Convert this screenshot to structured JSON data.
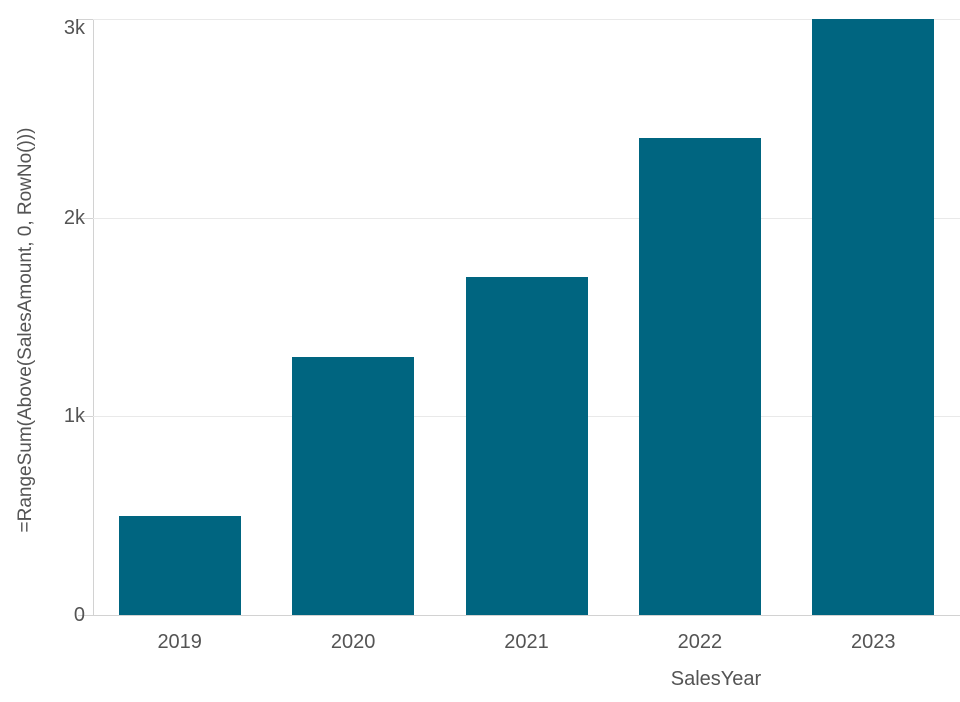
{
  "chart_data": {
    "type": "bar",
    "categories": [
      "2019",
      "2020",
      "2021",
      "2022",
      "2023"
    ],
    "values": [
      500,
      1300,
      1700,
      2400,
      3000
    ],
    "title": "",
    "xlabel": "SalesYear",
    "ylabel": "=RangeSum(Above(SalesAmount, 0, RowNo()))",
    "ylim": [
      0,
      3000
    ],
    "yticks": [
      {
        "value": 0,
        "label": "0"
      },
      {
        "value": 1000,
        "label": "1k"
      },
      {
        "value": 2000,
        "label": "2k"
      },
      {
        "value": 3000,
        "label": "3k"
      }
    ],
    "grid": true,
    "legend_position": "none",
    "bar_color": "#006580",
    "text_color": "#545454",
    "grid_color": "#e9e9e9",
    "axis_color": "#d2d2d2"
  }
}
